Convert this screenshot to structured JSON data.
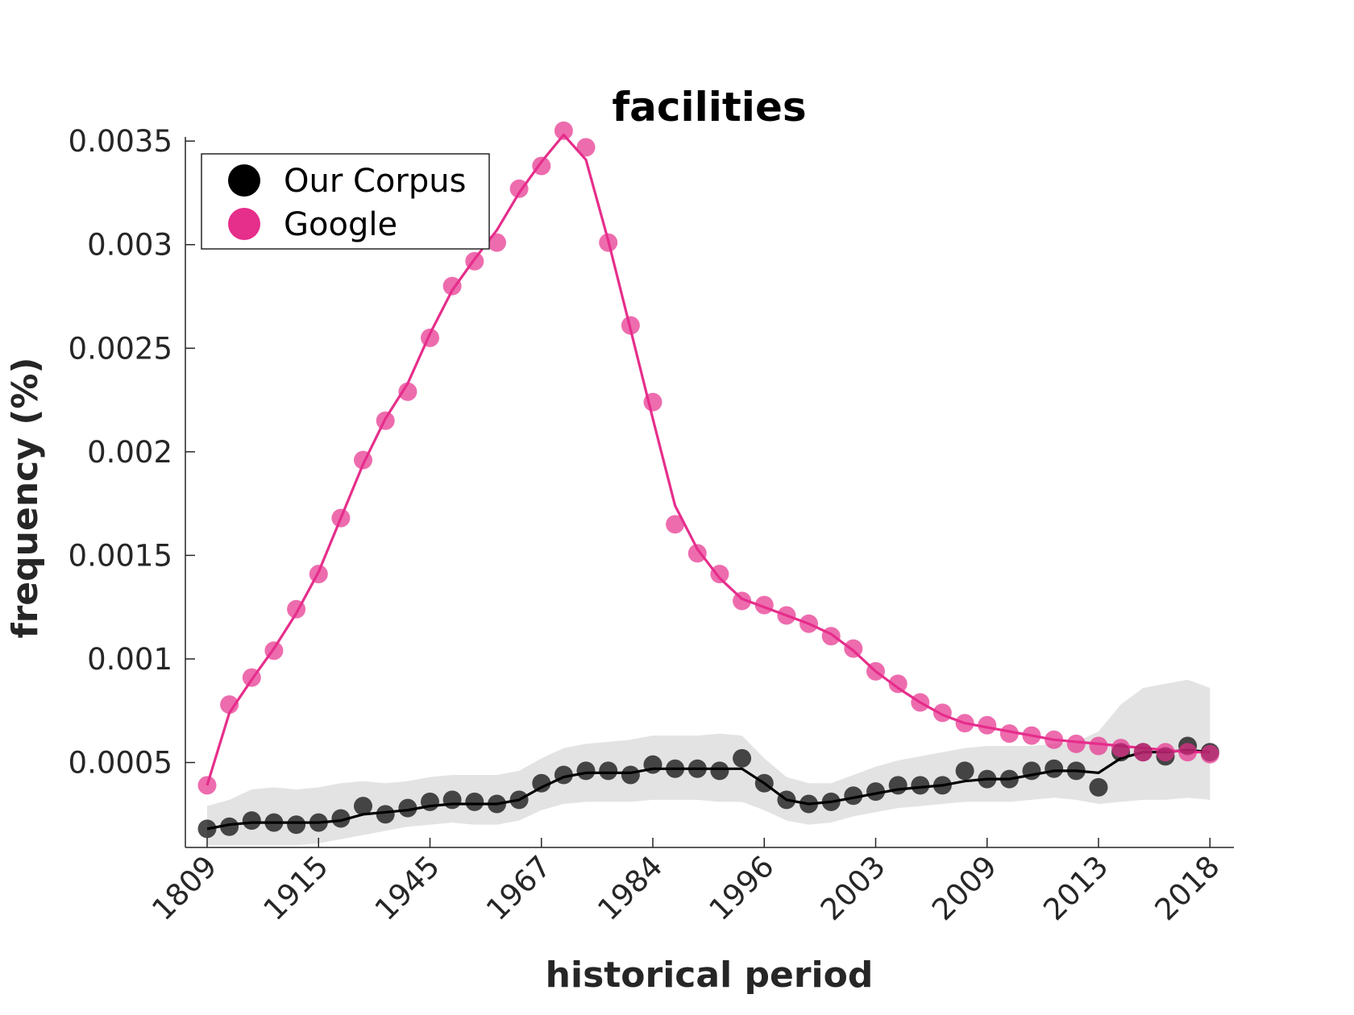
{
  "chart_data": {
    "type": "scatter",
    "title": "facilities",
    "xlabel": "historical period",
    "ylabel": "frequency (%)",
    "x_tick_labels": [
      "1809",
      "1915",
      "1945",
      "1967",
      "1984",
      "1996",
      "2003",
      "2009",
      "2013",
      "2018"
    ],
    "y_ticks": [
      0.0005,
      0.001,
      0.0015,
      0.002,
      0.0025,
      0.003,
      0.0035
    ],
    "y_tick_labels": [
      "0.0005",
      "0.001",
      "0.0015",
      "0.002",
      "0.0025",
      "0.003",
      "0.0035"
    ],
    "ylim": [
      9e-05,
      0.00352
    ],
    "legend_position": "top-left",
    "grid": false,
    "series": [
      {
        "name": "Our Corpus",
        "color": "#000000",
        "points": [
          0.00018,
          0.00019,
          0.00022,
          0.00021,
          0.0002,
          0.00021,
          0.00023,
          0.00029,
          0.00025,
          0.00028,
          0.00031,
          0.00032,
          0.00031,
          0.0003,
          0.00032,
          0.0004,
          0.00044,
          0.00046,
          0.00046,
          0.00044,
          0.00049,
          0.00047,
          0.00047,
          0.00046,
          0.00052,
          0.0004,
          0.00032,
          0.0003,
          0.00031,
          0.00034,
          0.00036,
          0.00039,
          0.00039,
          0.00039,
          0.00046,
          0.00042,
          0.00042,
          0.00046,
          0.00047,
          0.00046,
          0.00038,
          0.00055,
          0.00055,
          0.00053,
          0.00058,
          0.00055
        ],
        "trend": [
          0.00018,
          0.0002,
          0.00021,
          0.00021,
          0.00021,
          0.00021,
          0.00022,
          0.00025,
          0.00026,
          0.00027,
          0.00029,
          0.0003,
          0.0003,
          0.0003,
          0.00032,
          0.00038,
          0.00043,
          0.00045,
          0.00045,
          0.00045,
          0.00047,
          0.00047,
          0.00047,
          0.00047,
          0.00047,
          0.0004,
          0.00032,
          0.0003,
          0.00031,
          0.00033,
          0.00035,
          0.00037,
          0.00038,
          0.00039,
          0.00041,
          0.00042,
          0.00042,
          0.00044,
          0.00046,
          0.00046,
          0.00045,
          0.00052,
          0.00055,
          0.00055,
          0.00056,
          0.00055
        ],
        "band_upper": [
          0.00029,
          0.00032,
          0.00037,
          0.00038,
          0.00037,
          0.00038,
          0.0004,
          0.00041,
          0.0004,
          0.00041,
          0.00043,
          0.00044,
          0.00044,
          0.00044,
          0.00046,
          0.00052,
          0.00057,
          0.00059,
          0.0006,
          0.00061,
          0.00063,
          0.00063,
          0.00063,
          0.00064,
          0.00063,
          0.00052,
          0.00043,
          0.0004,
          0.0004,
          0.00044,
          0.00048,
          0.00051,
          0.00053,
          0.00055,
          0.00057,
          0.00058,
          0.00058,
          0.00058,
          0.00059,
          0.0006,
          0.00065,
          0.00078,
          0.00086,
          0.00088,
          0.0009,
          0.00086
        ],
        "band_lower": [
          0.0001,
          0.0001,
          0.0001,
          0.0001,
          0.0001,
          0.00011,
          0.00013,
          0.00015,
          0.00017,
          0.00019,
          0.0002,
          0.00021,
          0.0002,
          0.0002,
          0.00022,
          0.00027,
          0.0003,
          0.00031,
          0.00031,
          0.00031,
          0.00032,
          0.00032,
          0.00032,
          0.00031,
          0.00031,
          0.00027,
          0.00022,
          0.0002,
          0.00021,
          0.00024,
          0.00026,
          0.00028,
          0.00029,
          0.0003,
          0.00031,
          0.00031,
          0.00031,
          0.00032,
          0.00033,
          0.00032,
          0.0003,
          0.00031,
          0.00032,
          0.00032,
          0.00033,
          0.00032
        ]
      },
      {
        "name": "Google",
        "color": "#E62E8B",
        "points": [
          0.00039,
          0.00078,
          0.00091,
          0.00104,
          0.00124,
          0.00141,
          0.00168,
          0.00196,
          0.00215,
          0.00229,
          0.00255,
          0.0028,
          0.00292,
          0.00301,
          0.00327,
          0.00338,
          0.00355,
          0.00347,
          0.00301,
          0.00261,
          0.00224,
          0.00165,
          0.00151,
          0.00141,
          0.00128,
          0.00126,
          0.00121,
          0.00117,
          0.00111,
          0.00105,
          0.00094,
          0.00088,
          0.00079,
          0.00074,
          0.00069,
          0.00068,
          0.00064,
          0.00063,
          0.00061,
          0.00059,
          0.00058,
          0.00057,
          0.00055,
          0.00055,
          0.00055,
          0.00054
        ],
        "trend": [
          0.00039,
          0.00074,
          0.0009,
          0.00105,
          0.00122,
          0.00142,
          0.00168,
          0.00194,
          0.00216,
          0.00233,
          0.00257,
          0.00278,
          0.00293,
          0.00307,
          0.00325,
          0.0034,
          0.00353,
          0.00341,
          0.00302,
          0.00259,
          0.00216,
          0.00174,
          0.00153,
          0.00139,
          0.00129,
          0.00125,
          0.00121,
          0.00117,
          0.00112,
          0.00104,
          0.00094,
          0.00086,
          0.00079,
          0.00073,
          0.00069,
          0.00067,
          0.00065,
          0.00063,
          0.00061,
          0.0006,
          0.00059,
          0.00058,
          0.00057,
          0.00056,
          0.00055,
          0.00055
        ]
      }
    ]
  }
}
